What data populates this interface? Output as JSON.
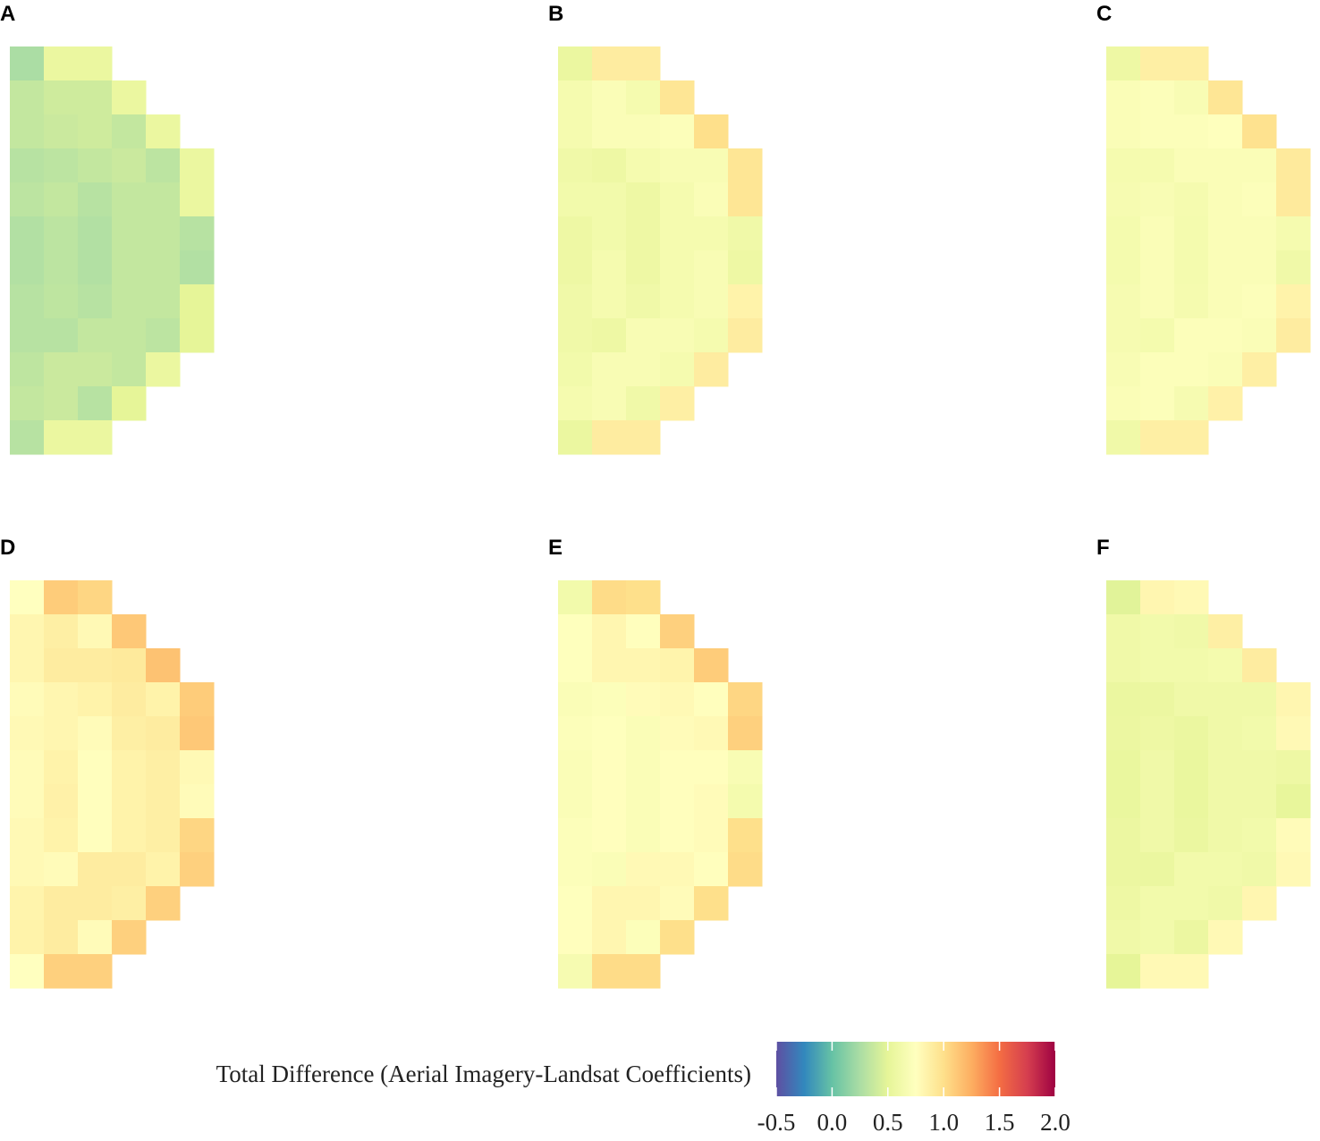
{
  "chart_data": [
    {
      "type": "heatmap",
      "title": "A",
      "values": [
        [
          0.25,
          0.55,
          0.55
        ],
        [
          0.35,
          0.4,
          0.4,
          0.55
        ],
        [
          0.35,
          0.38,
          0.4,
          0.35,
          0.55
        ],
        [
          0.3,
          0.32,
          0.35,
          0.38,
          0.32,
          0.55
        ],
        [
          0.32,
          0.35,
          0.3,
          0.35,
          0.35,
          0.55
        ],
        [
          0.28,
          0.32,
          0.28,
          0.35,
          0.35,
          0.3
        ],
        [
          0.28,
          0.32,
          0.28,
          0.35,
          0.35,
          0.28
        ],
        [
          0.3,
          0.33,
          0.3,
          0.35,
          0.35,
          0.5
        ],
        [
          0.3,
          0.3,
          0.35,
          0.35,
          0.32,
          0.5
        ],
        [
          0.33,
          0.38,
          0.38,
          0.35,
          0.55
        ],
        [
          0.35,
          0.38,
          0.3,
          0.5
        ],
        [
          0.3,
          0.55,
          0.55
        ]
      ]
    },
    {
      "type": "heatmap",
      "title": "B",
      "values": [
        [
          0.55,
          0.9,
          0.9
        ],
        [
          0.65,
          0.7,
          0.65,
          0.95
        ],
        [
          0.65,
          0.7,
          0.7,
          0.72,
          1.0
        ],
        [
          0.6,
          0.58,
          0.65,
          0.68,
          0.68,
          0.95
        ],
        [
          0.62,
          0.62,
          0.58,
          0.65,
          0.7,
          0.95
        ],
        [
          0.58,
          0.62,
          0.58,
          0.65,
          0.65,
          0.6
        ],
        [
          0.58,
          0.65,
          0.58,
          0.65,
          0.68,
          0.58
        ],
        [
          0.6,
          0.65,
          0.6,
          0.65,
          0.68,
          0.85
        ],
        [
          0.6,
          0.58,
          0.68,
          0.68,
          0.65,
          0.9
        ],
        [
          0.62,
          0.68,
          0.68,
          0.65,
          0.9
        ],
        [
          0.65,
          0.68,
          0.6,
          0.88
        ],
        [
          0.55,
          0.9,
          0.9
        ]
      ]
    },
    {
      "type": "heatmap",
      "title": "C",
      "values": [
        [
          0.58,
          0.88,
          0.88
        ],
        [
          0.7,
          0.72,
          0.68,
          0.95
        ],
        [
          0.7,
          0.72,
          0.72,
          0.74,
          0.98
        ],
        [
          0.65,
          0.65,
          0.7,
          0.7,
          0.7,
          0.92
        ],
        [
          0.66,
          0.68,
          0.65,
          0.7,
          0.72,
          0.92
        ],
        [
          0.64,
          0.7,
          0.64,
          0.7,
          0.7,
          0.65
        ],
        [
          0.64,
          0.7,
          0.64,
          0.7,
          0.7,
          0.6
        ],
        [
          0.66,
          0.7,
          0.65,
          0.7,
          0.72,
          0.85
        ],
        [
          0.66,
          0.64,
          0.72,
          0.72,
          0.7,
          0.9
        ],
        [
          0.68,
          0.72,
          0.72,
          0.7,
          0.88
        ],
        [
          0.7,
          0.72,
          0.66,
          0.86
        ],
        [
          0.6,
          0.88,
          0.88
        ]
      ]
    },
    {
      "type": "heatmap",
      "title": "D",
      "values": [
        [
          0.75,
          1.1,
          1.05
        ],
        [
          0.82,
          0.88,
          0.8,
          1.12
        ],
        [
          0.82,
          0.9,
          0.9,
          0.92,
          1.15
        ],
        [
          0.78,
          0.82,
          0.85,
          0.9,
          0.85,
          1.1
        ],
        [
          0.8,
          0.82,
          0.78,
          0.88,
          0.9,
          1.12
        ],
        [
          0.78,
          0.85,
          0.76,
          0.85,
          0.88,
          0.8
        ],
        [
          0.78,
          0.86,
          0.76,
          0.85,
          0.88,
          0.78
        ],
        [
          0.8,
          0.85,
          0.76,
          0.85,
          0.88,
          1.05
        ],
        [
          0.8,
          0.78,
          0.9,
          0.9,
          0.85,
          1.08
        ],
        [
          0.84,
          0.9,
          0.9,
          0.88,
          1.08
        ],
        [
          0.85,
          0.9,
          0.78,
          1.08
        ],
        [
          0.75,
          1.08,
          1.08
        ]
      ]
    },
    {
      "type": "heatmap",
      "title": "E",
      "values": [
        [
          0.62,
          1.02,
          1.0
        ],
        [
          0.74,
          0.82,
          0.76,
          1.08
        ],
        [
          0.74,
          0.82,
          0.82,
          0.84,
          1.1
        ],
        [
          0.7,
          0.72,
          0.78,
          0.8,
          0.76,
          1.05
        ],
        [
          0.72,
          0.74,
          0.7,
          0.78,
          0.8,
          1.08
        ],
        [
          0.7,
          0.76,
          0.7,
          0.76,
          0.76,
          0.68
        ],
        [
          0.7,
          0.76,
          0.7,
          0.76,
          0.78,
          0.64
        ],
        [
          0.72,
          0.76,
          0.7,
          0.76,
          0.78,
          1.0
        ],
        [
          0.72,
          0.7,
          0.8,
          0.8,
          0.76,
          1.02
        ],
        [
          0.74,
          0.82,
          0.82,
          0.78,
          1.0
        ],
        [
          0.76,
          0.82,
          0.72,
          1.0
        ],
        [
          0.66,
          1.02,
          1.02
        ]
      ]
    },
    {
      "type": "heatmap",
      "title": "F",
      "values": [
        [
          0.48,
          0.82,
          0.8
        ],
        [
          0.6,
          0.62,
          0.6,
          0.88
        ],
        [
          0.6,
          0.62,
          0.62,
          0.64,
          0.9
        ],
        [
          0.55,
          0.56,
          0.6,
          0.6,
          0.6,
          0.82
        ],
        [
          0.56,
          0.58,
          0.55,
          0.6,
          0.62,
          0.8
        ],
        [
          0.54,
          0.6,
          0.54,
          0.6,
          0.6,
          0.58
        ],
        [
          0.54,
          0.6,
          0.54,
          0.6,
          0.6,
          0.52
        ],
        [
          0.56,
          0.6,
          0.55,
          0.6,
          0.62,
          0.78
        ],
        [
          0.56,
          0.55,
          0.62,
          0.62,
          0.6,
          0.8
        ],
        [
          0.58,
          0.62,
          0.62,
          0.6,
          0.82
        ],
        [
          0.6,
          0.62,
          0.56,
          0.8
        ],
        [
          0.5,
          0.8,
          0.8
        ]
      ]
    }
  ],
  "colorbar": {
    "title": "Total Difference (Aerial Imagery-Landsat Coefficients)",
    "lim": [
      -0.5,
      2.0
    ],
    "ticks": [
      -0.5,
      {
        "value": 0,
        "label": "0.0"
      },
      0.5,
      {
        "value": 1,
        "label": "1.0"
      },
      1.5,
      {
        "value": 2,
        "label": "2.0"
      }
    ],
    "colors": [
      "#5e4fa2",
      "#3288bd",
      "#66c2a5",
      "#abdda4",
      "#e6f598",
      "#ffffbf",
      "#fee08b",
      "#fdae61",
      "#f46d43",
      "#d53e4f",
      "#9e0142"
    ]
  }
}
